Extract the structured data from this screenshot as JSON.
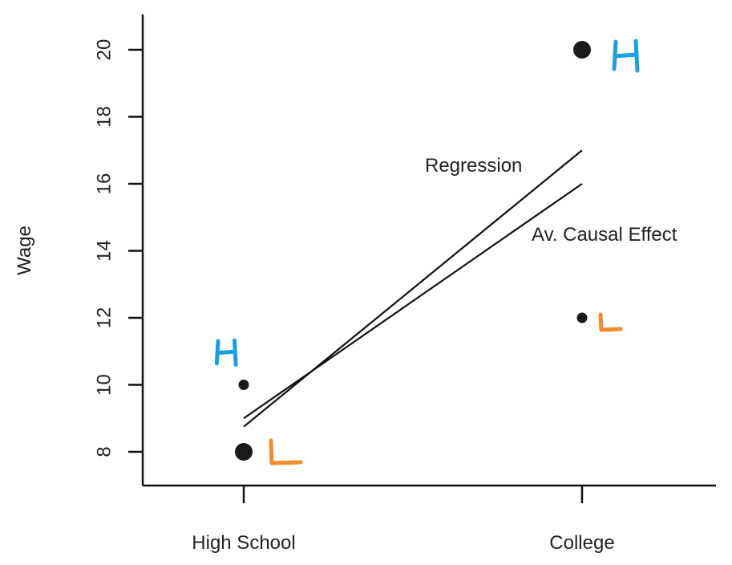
{
  "chart_data": {
    "type": "scatter",
    "title": "",
    "xlabel": "",
    "ylabel": "Wage",
    "categories": [
      "High School",
      "College"
    ],
    "ylim": [
      7,
      21
    ],
    "yticks": [
      8,
      10,
      12,
      14,
      16,
      18,
      20
    ],
    "grid": false,
    "points": [
      {
        "category": "High School",
        "y": 10,
        "size": "small",
        "group": "H"
      },
      {
        "category": "High School",
        "y": 8,
        "size": "large",
        "group": "L"
      },
      {
        "category": "College",
        "y": 20,
        "size": "large",
        "group": "H"
      },
      {
        "category": "College",
        "y": 12,
        "size": "small",
        "group": "L"
      }
    ],
    "lines": [
      {
        "name": "Regression",
        "y": [
          8.75,
          17
        ]
      },
      {
        "name": "Av. Causal Effect",
        "y": [
          9,
          16
        ]
      }
    ],
    "group_labels": {
      "H": "H",
      "L": "L"
    },
    "colors": {
      "H": "#1a9fe0",
      "L": "#f28a2e",
      "marks": "#1a1a1a"
    }
  }
}
